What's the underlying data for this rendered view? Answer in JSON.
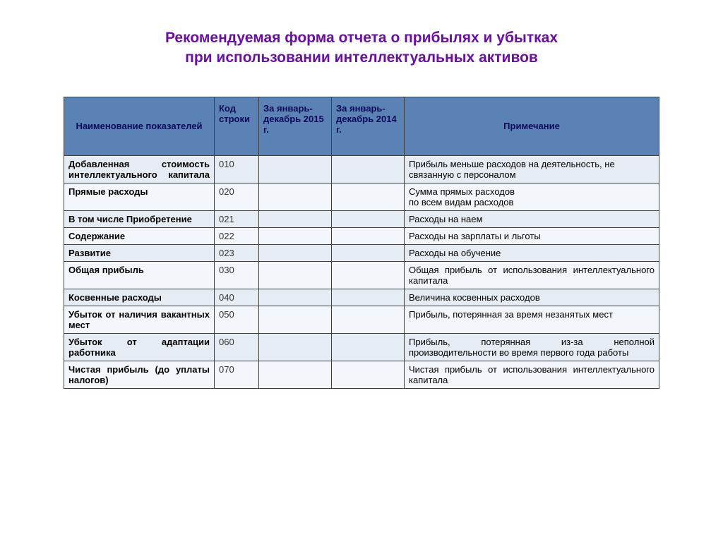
{
  "title_line1": "Рекомендуемая форма отчета о прибылях и убытках",
  "title_line2": "при использовании интеллектуальных активов",
  "colors": {
    "title": "#6a0dad",
    "header_bg": "#5a82b4",
    "header_text": "#0a0a5a",
    "row_odd_bg": "#e6ecf3",
    "row_even_bg": "#f3f6fa",
    "border": "#404040"
  },
  "table": {
    "headers": {
      "name": "Наименование показателей",
      "code": "Код строки",
      "y2015": "За январь-декабрь 2015 г.",
      "y2014": "За январь-декабрь 2014 г.",
      "note": "Примечание"
    },
    "rows": [
      {
        "name": "Добавленная стоимость интеллектуального капитала",
        "code": "010",
        "y2015": "",
        "y2014": "",
        "note": "Прибыль меньше расходов на деятельность, не связанную с персоналом",
        "name_justify": true,
        "note_justify": false
      },
      {
        "name": "Прямые расходы",
        "code": "020",
        "y2015": "",
        "y2014": "",
        "note": "Сумма прямых расходов\nпо всем видам расходов",
        "name_justify": false,
        "note_justify": false
      },
      {
        "name": "В том числе Приобретение",
        "code": "021",
        "y2015": "",
        "y2014": "",
        "note": "Расходы на наем",
        "name_justify": false,
        "note_justify": false
      },
      {
        "name": "Содержание",
        "code": "022",
        "y2015": "",
        "y2014": "",
        "note": "Расходы на зарплаты и льготы",
        "name_justify": false,
        "note_justify": false
      },
      {
        "name": "Развитие",
        "code": "023",
        "y2015": "",
        "y2014": "",
        "note": "Расходы на обучение",
        "name_justify": false,
        "note_justify": false
      },
      {
        "name": "Общая прибыль",
        "code": "030",
        "y2015": "",
        "y2014": "",
        "note": "Общая прибыль от использования интеллектуального капитала",
        "name_justify": false,
        "note_justify": true
      },
      {
        "name": "Косвенные расходы",
        "code": "040",
        "y2015": "",
        "y2014": "",
        "note": "Величина косвенных расходов",
        "name_justify": false,
        "note_justify": false
      },
      {
        "name": "Убыток от наличия вакантных мест",
        "code": "050",
        "y2015": "",
        "y2014": "",
        "note": "Прибыль, потерянная за время незанятых мест",
        "name_justify": true,
        "note_justify": false
      },
      {
        "name": "Убыток от адаптации работника",
        "code": "060",
        "y2015": "",
        "y2014": "",
        "note": "Прибыль, потерянная из-за неполной производительности во время первого года работы",
        "name_justify": true,
        "note_justify": true
      },
      {
        "name": "Чистая прибыль (до уплаты налогов)",
        "code": "070",
        "y2015": "",
        "y2014": "",
        "note": "Чистая прибыль от использования интеллектуального капитала",
        "name_justify": false,
        "note_justify": true
      }
    ]
  }
}
